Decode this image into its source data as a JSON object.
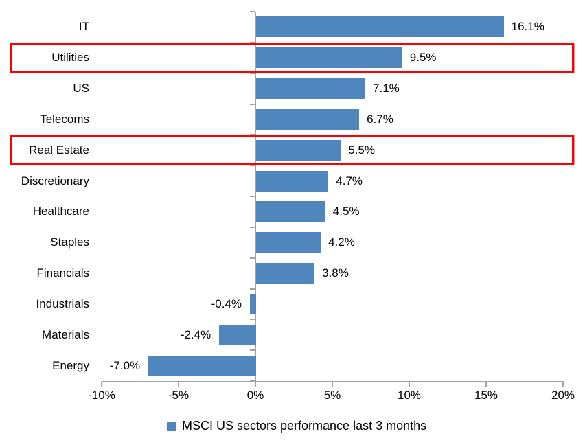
{
  "chart_data": {
    "type": "bar",
    "orientation": "horizontal",
    "title": "",
    "categories": [
      "IT",
      "Utilities",
      "US",
      "Telecoms",
      "Real Estate",
      "Discretionary",
      "Healthcare",
      "Staples",
      "Financials",
      "Industrials",
      "Materials",
      "Energy"
    ],
    "values": [
      16.1,
      9.5,
      7.1,
      6.7,
      5.5,
      4.7,
      4.5,
      4.2,
      3.8,
      -0.4,
      -2.4,
      -7.0
    ],
    "data_labels": [
      "16.1%",
      "9.5%",
      "7.1%",
      "6.7%",
      "5.5%",
      "4.7%",
      "4.5%",
      "4.2%",
      "3.8%",
      "-0.4%",
      "-2.4%",
      "-7.0%"
    ],
    "x_axis": {
      "min": -10,
      "max": 20,
      "tick_values": [
        -10,
        -5,
        0,
        5,
        10,
        15,
        20
      ],
      "tick_labels": [
        "-10%",
        "-5%",
        "0%",
        "5%",
        "10%",
        "15%",
        "20%"
      ]
    },
    "grid": false,
    "bar_color": "#4e86bd",
    "axis_color": "#a3a3a3",
    "highlight_color": "#ff0000",
    "highlights": [
      {
        "category": "Utilities"
      },
      {
        "category": "Real Estate"
      }
    ],
    "legend": {
      "position": "bottom",
      "marker": "square-icon",
      "marker_color": "#4e86bd",
      "label": "MSCI US sectors performance last 3 months"
    }
  }
}
